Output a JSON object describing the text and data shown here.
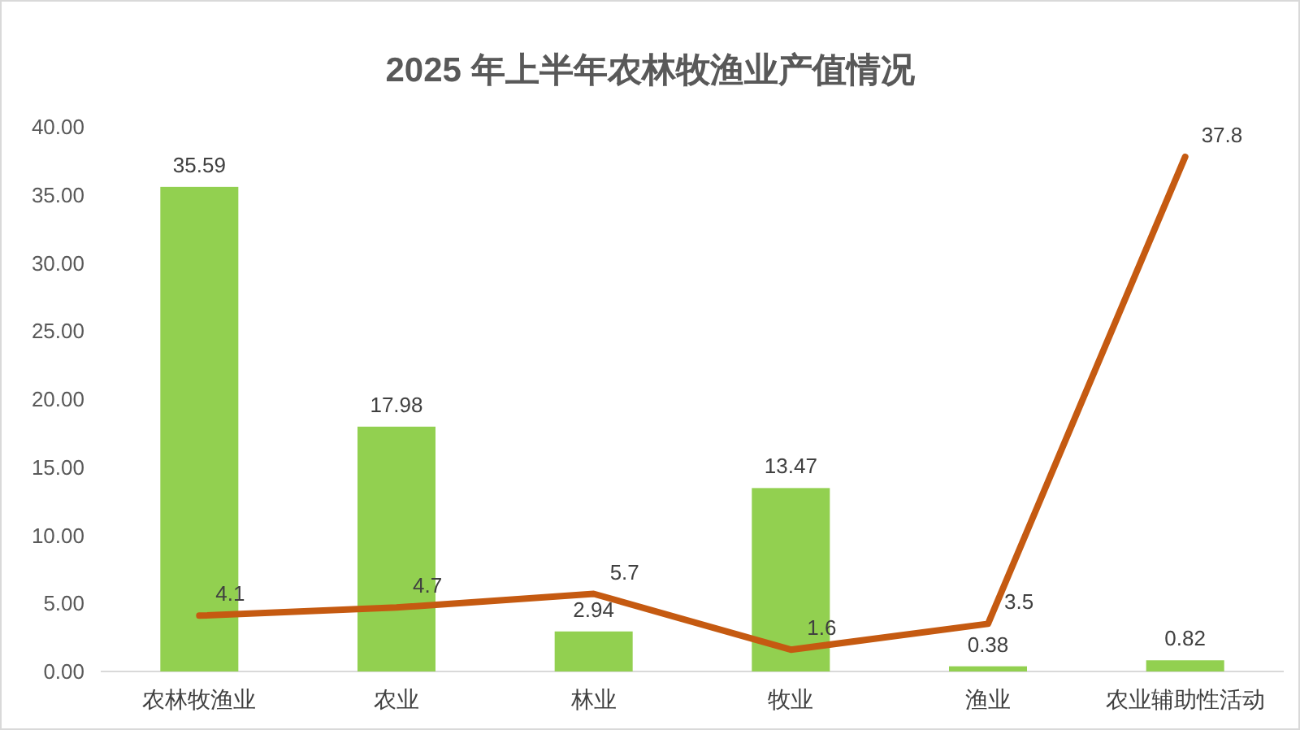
{
  "chart_data": {
    "type": "bar",
    "title": "2025 年上半年农林牧渔业产值情况",
    "categories": [
      "农林牧渔业",
      "农业",
      "林业",
      "牧业",
      "渔业",
      "农业辅助性活动"
    ],
    "series": [
      {
        "type": "bar",
        "color": "#92d050",
        "values": [
          35.59,
          17.98,
          2.94,
          13.47,
          0.38,
          0.82
        ]
      },
      {
        "type": "line",
        "color": "#c55a11",
        "values": [
          4.1,
          4.7,
          5.7,
          1.6,
          3.5,
          37.8
        ]
      }
    ],
    "ylim": [
      0,
      40
    ],
    "yticks": [
      {
        "value": 0,
        "label": "0.00"
      },
      {
        "value": 5,
        "label": "5.00"
      },
      {
        "value": 10,
        "label": "10.00"
      },
      {
        "value": 15,
        "label": "15.00"
      },
      {
        "value": 20,
        "label": "20.00"
      },
      {
        "value": 25,
        "label": "25.00"
      },
      {
        "value": 30,
        "label": "30.00"
      },
      {
        "value": 35,
        "label": "35.00"
      },
      {
        "value": 40,
        "label": "40.00"
      }
    ],
    "data_labels": true
  }
}
